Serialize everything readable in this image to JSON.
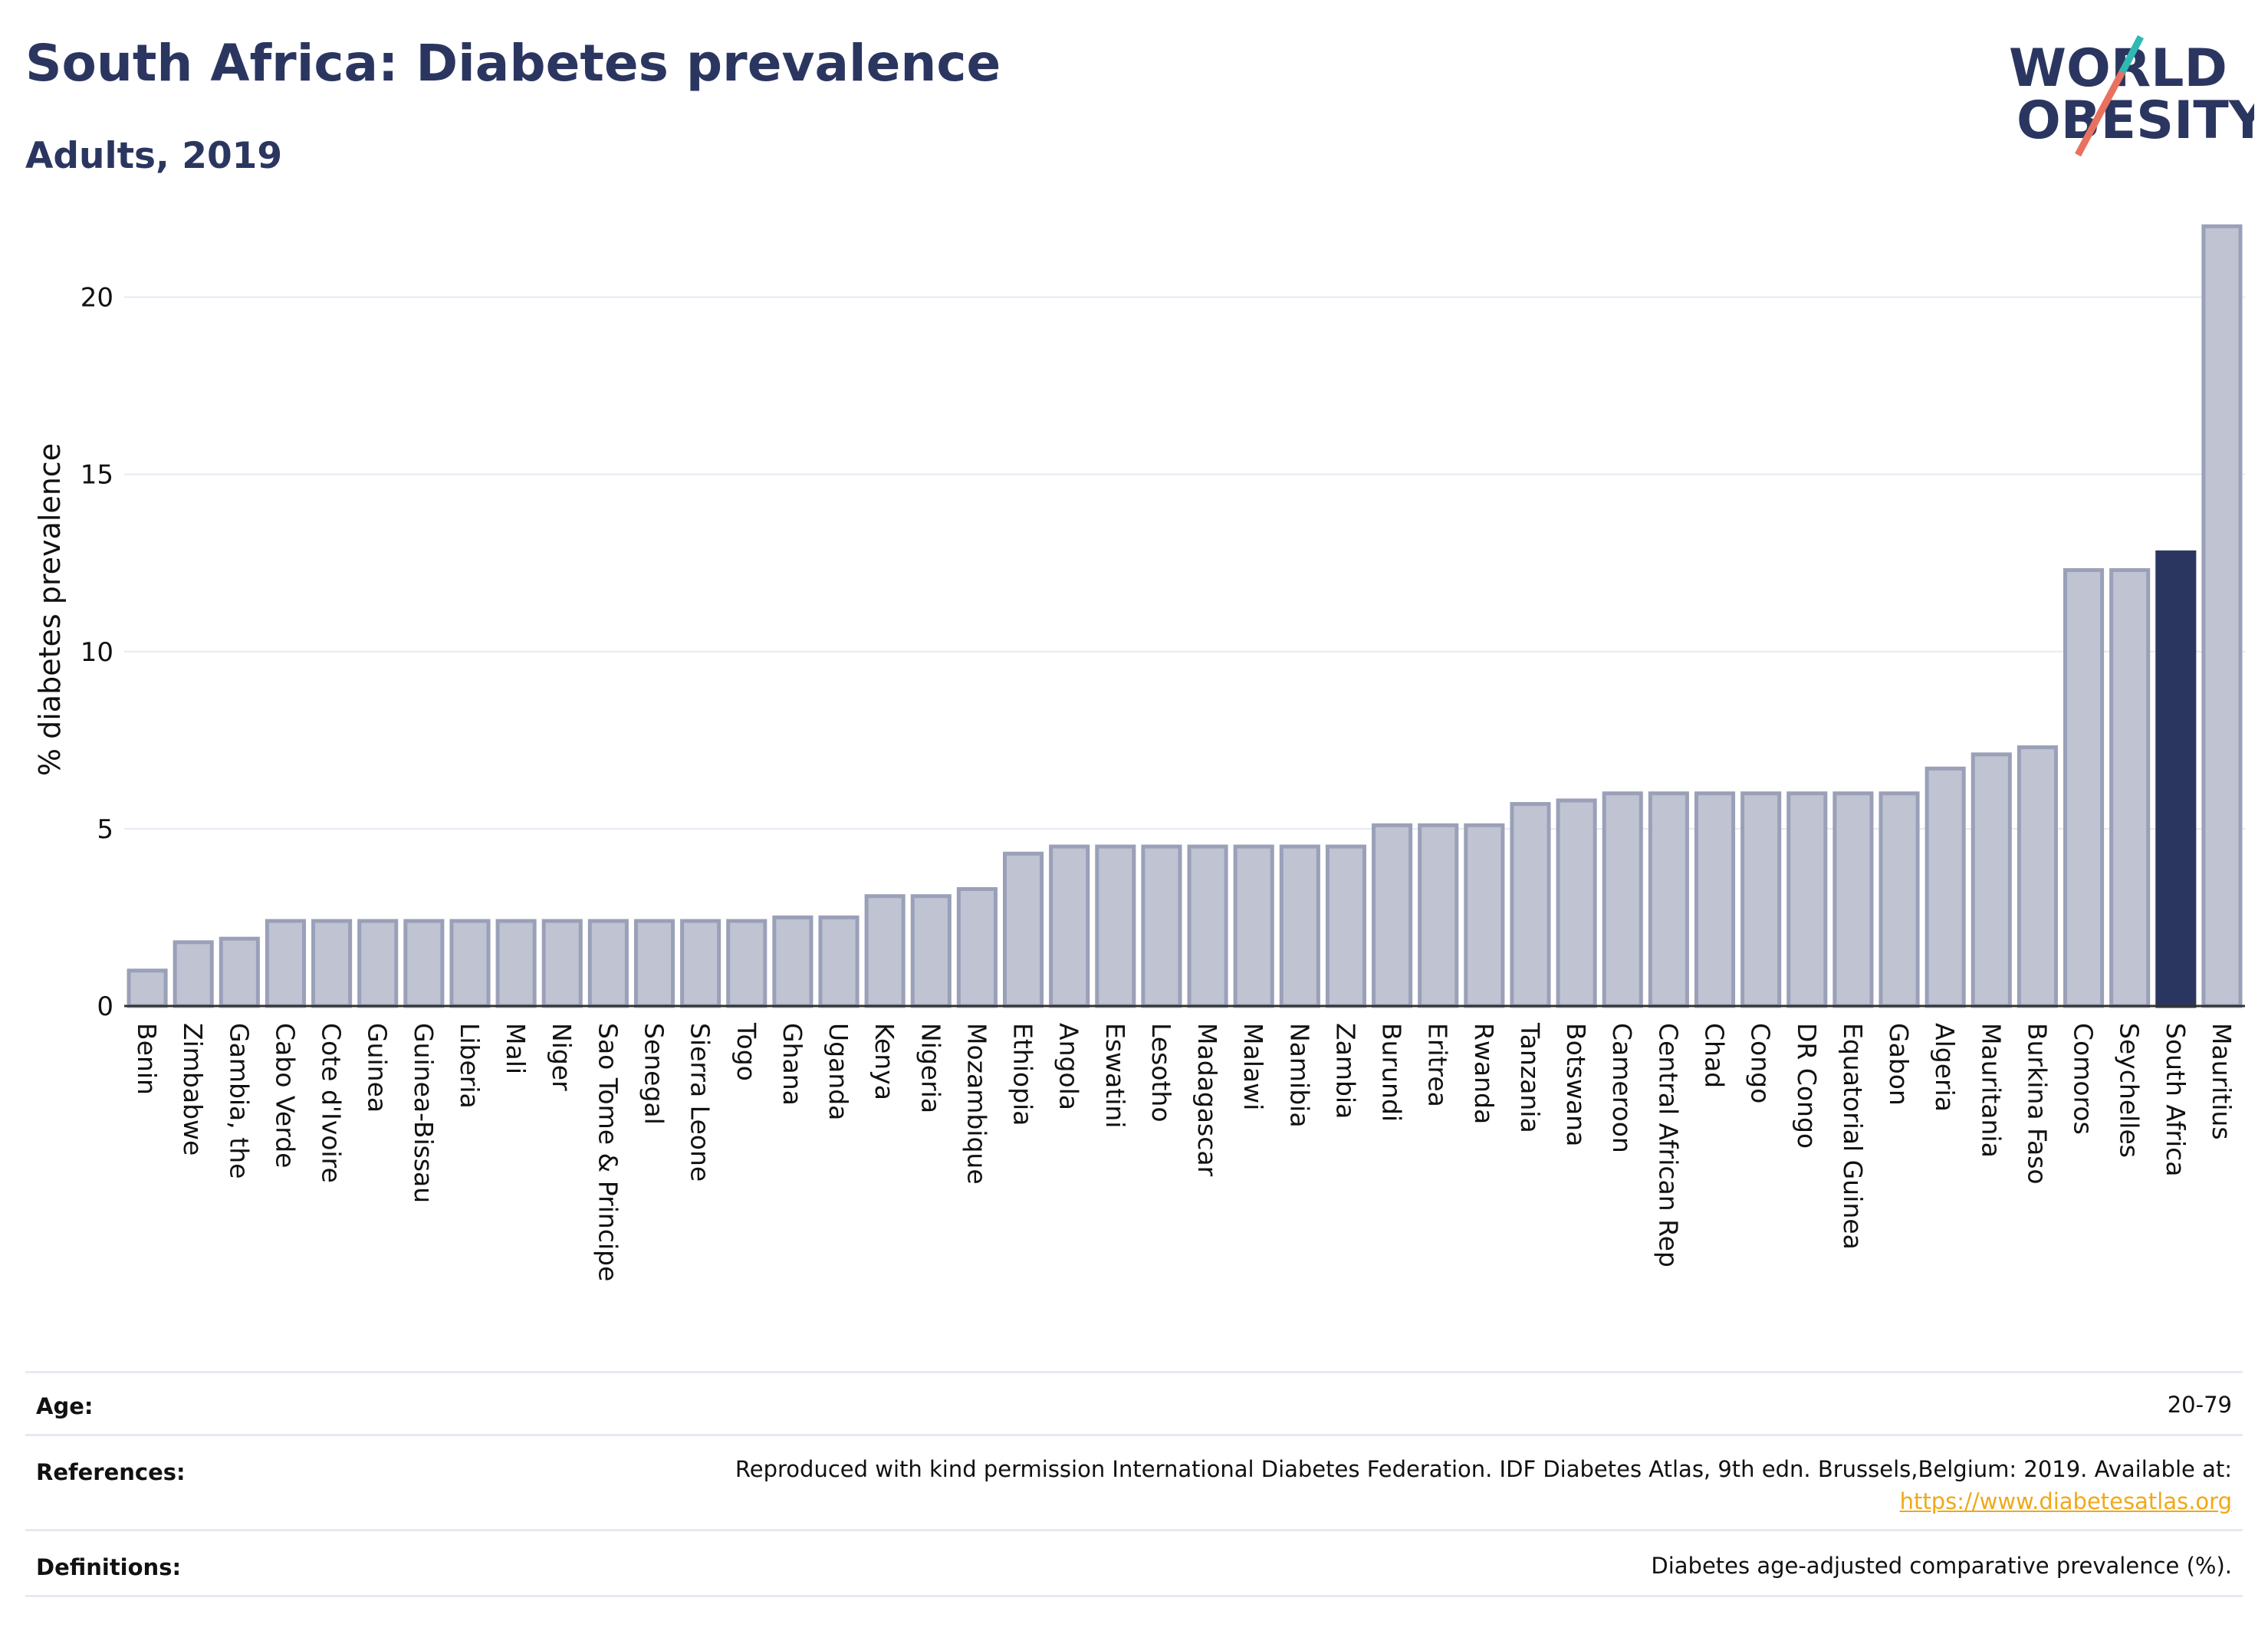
{
  "header": {
    "title": "South Africa: Diabetes prevalence",
    "subtitle": "Adults, 2019"
  },
  "logo": {
    "line1": "WORLD",
    "line2": "OBESITY"
  },
  "colors": {
    "bar": "#bfc3d2",
    "bar_stroke": "#9aa0b8",
    "highlight": "#2b3660",
    "brand": "#2b3660",
    "logo_teal": "#2fb9b3",
    "logo_red": "#e9715f",
    "link": "#f0a818"
  },
  "chart_data": {
    "type": "bar",
    "ylabel": "% diabetes prevalence",
    "ylim": [
      0,
      22.5
    ],
    "yticks": [
      0,
      5,
      10,
      15,
      20
    ],
    "grid": true,
    "highlight": "South Africa",
    "categories": [
      "Benin",
      "Zimbabwe",
      "Gambia, the",
      "Cabo Verde",
      "Cote d'Ivoire",
      "Guinea",
      "Guinea-Bissau",
      "Liberia",
      "Mali",
      "Niger",
      "Sao Tome & Principe",
      "Senegal",
      "Sierra Leone",
      "Togo",
      "Ghana",
      "Uganda",
      "Kenya",
      "Nigeria",
      "Mozambique",
      "Ethiopia",
      "Angola",
      "Eswatini",
      "Lesotho",
      "Madagascar",
      "Malawi",
      "Namibia",
      "Zambia",
      "Burundi",
      "Eritrea",
      "Rwanda",
      "Tanzania",
      "Botswana",
      "Cameroon",
      "Central African Rep",
      "Chad",
      "Congo",
      "DR Congo",
      "Equatorial Guinea",
      "Gabon",
      "Algeria",
      "Mauritania",
      "Burkina Faso",
      "Comoros",
      "Seychelles",
      "South Africa",
      "Mauritius"
    ],
    "values": [
      1.0,
      1.8,
      1.9,
      2.4,
      2.4,
      2.4,
      2.4,
      2.4,
      2.4,
      2.4,
      2.4,
      2.4,
      2.4,
      2.4,
      2.5,
      2.5,
      3.1,
      3.1,
      3.3,
      4.3,
      4.5,
      4.5,
      4.5,
      4.5,
      4.5,
      4.5,
      4.5,
      5.1,
      5.1,
      5.1,
      5.7,
      5.8,
      6.0,
      6.0,
      6.0,
      6.0,
      6.0,
      6.0,
      6.0,
      6.7,
      7.1,
      7.3,
      12.3,
      12.3,
      12.8,
      22.0
    ]
  },
  "info": {
    "age_key": "Age:",
    "age_val": "20-79",
    "ref_key": "References:",
    "ref_val": "Reproduced with kind permission International Diabetes Federation. IDF Diabetes Atlas, 9th edn. Brussels,Belgium: 2019. Available at:",
    "ref_link": "https://www.diabetesatlas.org",
    "def_key": "Definitions:",
    "def_val": "Diabetes age-adjusted comparative prevalence (%)."
  }
}
